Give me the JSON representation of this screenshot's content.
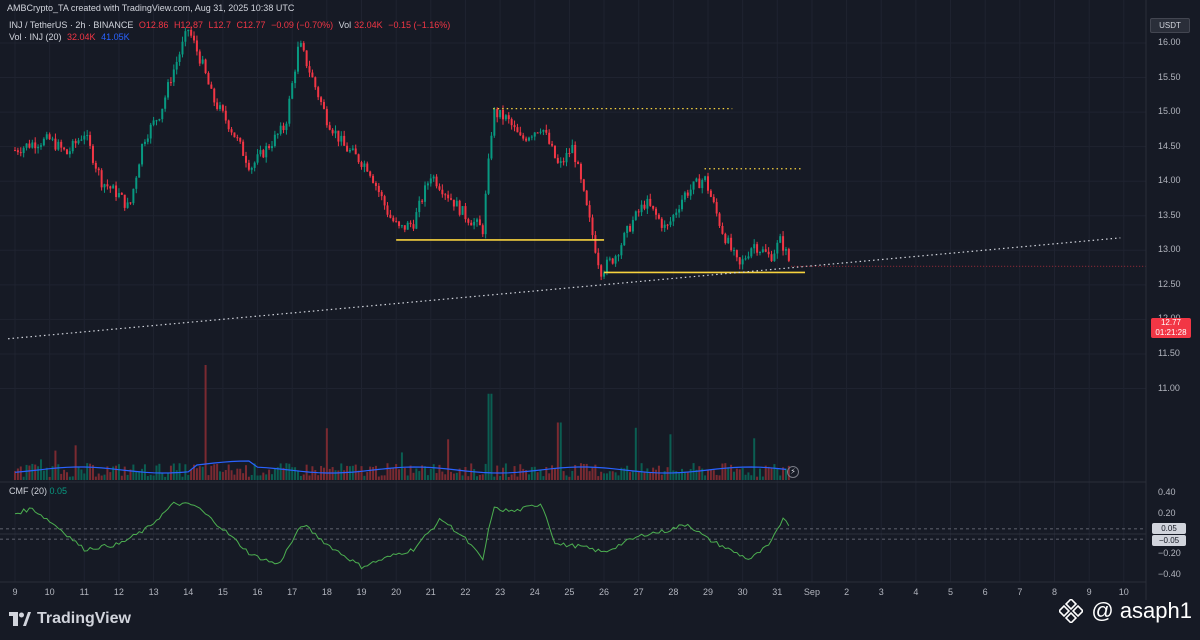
{
  "header": {
    "title": "AMBCrypto_TA created with TradingView.com, Aug 31, 2025 10:38 UTC"
  },
  "legend": {
    "symbol": "INJ / TetherUS · 2h · BINANCE",
    "open": "O12.86",
    "high": "H12.87",
    "low": "L12.7",
    "close": "C12.77",
    "change": "−0.09 (−0.70%)",
    "vol": "Vol",
    "vol_value": "32.04K",
    "vol_change": "−0.15 (−1.16%)",
    "vol_ma_label": "Vol · INJ (20)",
    "vol_ma_v1": "32.04K",
    "vol_ma_v2": "41.05K"
  },
  "cmf": {
    "label": "CMF (20)",
    "value": "0.05",
    "badge_pos": "0.05",
    "badge_neg": "−0.05",
    "axis": [
      "0.40",
      "0.20",
      "−0.20",
      "−0.40"
    ]
  },
  "price_axis": {
    "currency": "USDT",
    "ticks": [
      "16.00",
      "15.50",
      "15.00",
      "14.50",
      "14.00",
      "13.50",
      "13.00",
      "12.50",
      "12.00",
      "11.50",
      "11.00"
    ]
  },
  "price_tag": {
    "price": "12.77",
    "countdown": "01:21:28"
  },
  "time_axis": {
    "labels": [
      "9",
      "10",
      "11",
      "12",
      "13",
      "14",
      "15",
      "16",
      "17",
      "18",
      "19",
      "20",
      "21",
      "22",
      "23",
      "24",
      "25",
      "26",
      "27",
      "28",
      "29",
      "30",
      "31",
      "Sep",
      "2",
      "3",
      "4",
      "5",
      "6",
      "7",
      "8",
      "9",
      "10"
    ]
  },
  "branding": {
    "logo_text": "TradingView",
    "watermark": "@ asaph1"
  },
  "colors": {
    "up": "#089981",
    "down": "#f23645",
    "support": "#f7d23e",
    "cmf_line": "#4caf50",
    "vol_ma": "#2962ff",
    "background": "#161a25"
  },
  "chart_data": {
    "type": "candlestick",
    "symbol": "INJ/USDT",
    "interval": "2h",
    "ylim": [
      11.0,
      16.3
    ],
    "price_anchors": [
      {
        "day": 9.0,
        "price": 14.45
      },
      {
        "day": 9.5,
        "price": 14.55
      },
      {
        "day": 10.0,
        "price": 14.6
      },
      {
        "day": 10.5,
        "price": 14.4
      },
      {
        "day": 11.0,
        "price": 14.7
      },
      {
        "day": 11.5,
        "price": 14.0
      },
      {
        "day": 12.0,
        "price": 13.8
      },
      {
        "day": 12.3,
        "price": 13.6
      },
      {
        "day": 12.7,
        "price": 14.6
      },
      {
        "day": 13.2,
        "price": 15.0
      },
      {
        "day": 13.5,
        "price": 15.5
      },
      {
        "day": 14.0,
        "price": 16.2
      },
      {
        "day": 14.4,
        "price": 15.7
      },
      {
        "day": 14.7,
        "price": 15.2
      },
      {
        "day": 15.2,
        "price": 14.8
      },
      {
        "day": 15.8,
        "price": 14.2
      },
      {
        "day": 16.3,
        "price": 14.5
      },
      {
        "day": 16.8,
        "price": 14.8
      },
      {
        "day": 17.2,
        "price": 16.0
      },
      {
        "day": 17.5,
        "price": 15.6
      },
      {
        "day": 18.0,
        "price": 14.9
      },
      {
        "day": 18.5,
        "price": 14.5
      },
      {
        "day": 19.2,
        "price": 14.2
      },
      {
        "day": 19.8,
        "price": 13.5
      },
      {
        "day": 20.1,
        "price": 13.3
      },
      {
        "day": 20.5,
        "price": 13.4
      },
      {
        "day": 21.0,
        "price": 14.1
      },
      {
        "day": 21.5,
        "price": 13.8
      },
      {
        "day": 22.0,
        "price": 13.5
      },
      {
        "day": 22.5,
        "price": 13.3
      },
      {
        "day": 22.8,
        "price": 15.0
      },
      {
        "day": 23.2,
        "price": 14.9
      },
      {
        "day": 23.6,
        "price": 14.6
      },
      {
        "day": 24.2,
        "price": 14.8
      },
      {
        "day": 24.7,
        "price": 14.2
      },
      {
        "day": 25.1,
        "price": 14.5
      },
      {
        "day": 25.5,
        "price": 13.6
      },
      {
        "day": 25.9,
        "price": 12.7
      },
      {
        "day": 26.3,
        "price": 12.9
      },
      {
        "day": 26.8,
        "price": 13.4
      },
      {
        "day": 27.2,
        "price": 13.7
      },
      {
        "day": 27.8,
        "price": 13.3
      },
      {
        "day": 28.3,
        "price": 13.8
      },
      {
        "day": 28.9,
        "price": 14.05
      },
      {
        "day": 29.4,
        "price": 13.3
      },
      {
        "day": 29.9,
        "price": 12.75
      },
      {
        "day": 30.3,
        "price": 13.1
      },
      {
        "day": 30.8,
        "price": 12.9
      },
      {
        "day": 31.1,
        "price": 13.15
      },
      {
        "day": 31.4,
        "price": 12.77
      }
    ],
    "horizontal_levels": [
      {
        "price": 13.15,
        "from_day": 20.0,
        "to_day": 26.0,
        "style": "solid"
      },
      {
        "price": 12.68,
        "from_day": 26.0,
        "to_day": 31.8,
        "style": "solid"
      },
      {
        "price": 15.05,
        "from_day": 22.8,
        "to_day": 29.7,
        "style": "dotted"
      },
      {
        "price": 14.18,
        "from_day": 28.9,
        "to_day": 31.7,
        "style": "dotted"
      }
    ],
    "trendline": {
      "from_day": 8.8,
      "from_price": 11.72,
      "to_day": 40.9,
      "to_price": 13.18,
      "style": "dotted"
    },
    "volume_peaks": [
      {
        "day": 14.5,
        "relative": 1.0
      },
      {
        "day": 22.7,
        "relative": 0.75
      },
      {
        "day": 24.7,
        "relative": 0.5
      },
      {
        "day": 18.0,
        "relative": 0.45
      }
    ],
    "cmf": {
      "ylim": [
        -0.45,
        0.45
      ],
      "anchors": [
        {
          "day": 9.0,
          "value": 0.2
        },
        {
          "day": 9.5,
          "value": 0.25
        },
        {
          "day": 10.3,
          "value": 0.05
        },
        {
          "day": 11.0,
          "value": -0.15
        },
        {
          "day": 12.0,
          "value": -0.1
        },
        {
          "day": 12.8,
          "value": 0.05
        },
        {
          "day": 13.6,
          "value": 0.3
        },
        {
          "day": 14.2,
          "value": 0.28
        },
        {
          "day": 15.0,
          "value": 0.05
        },
        {
          "day": 15.8,
          "value": -0.2
        },
        {
          "day": 16.6,
          "value": -0.3
        },
        {
          "day": 17.3,
          "value": 0.1
        },
        {
          "day": 18.0,
          "value": -0.1
        },
        {
          "day": 19.0,
          "value": -0.32
        },
        {
          "day": 20.0,
          "value": -0.2
        },
        {
          "day": 20.5,
          "value": -0.15
        },
        {
          "day": 21.3,
          "value": 0.15
        },
        {
          "day": 22.0,
          "value": -0.05
        },
        {
          "day": 22.5,
          "value": -0.25
        },
        {
          "day": 22.8,
          "value": 0.25
        },
        {
          "day": 23.4,
          "value": 0.22
        },
        {
          "day": 24.2,
          "value": 0.3
        },
        {
          "day": 24.6,
          "value": -0.1
        },
        {
          "day": 25.3,
          "value": -0.12
        },
        {
          "day": 26.0,
          "value": -0.18
        },
        {
          "day": 26.6,
          "value": -0.08
        },
        {
          "day": 27.2,
          "value": 0.0
        },
        {
          "day": 27.8,
          "value": 0.03
        },
        {
          "day": 28.4,
          "value": 0.1
        },
        {
          "day": 29.0,
          "value": -0.05
        },
        {
          "day": 29.6,
          "value": -0.15
        },
        {
          "day": 30.2,
          "value": -0.25
        },
        {
          "day": 30.8,
          "value": -0.1
        },
        {
          "day": 31.2,
          "value": 0.18
        },
        {
          "day": 31.4,
          "value": 0.05
        }
      ]
    }
  }
}
